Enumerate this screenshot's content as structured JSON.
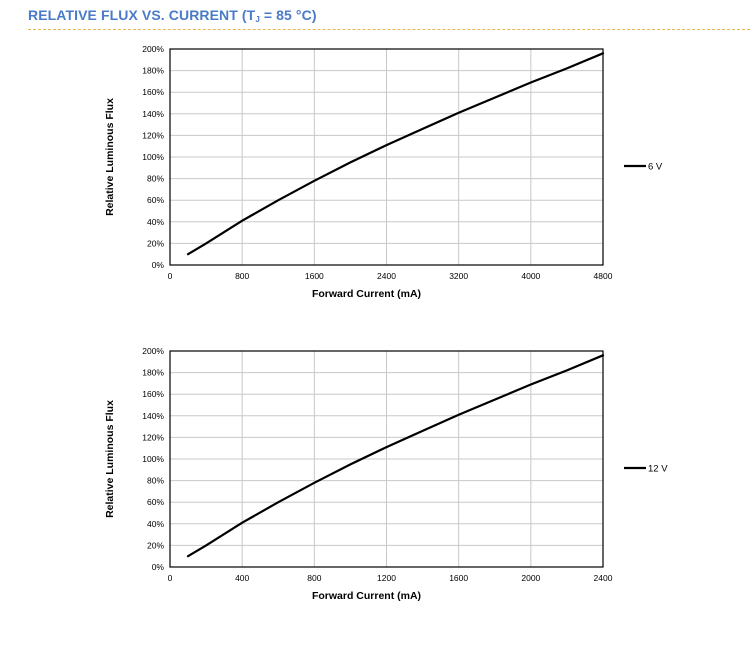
{
  "header": {
    "title_prefix": "RELATIVE FLUX VS. CURRENT (T",
    "title_sub": "J",
    "title_suffix": " = 85 °C)"
  },
  "colors": {
    "title": "#4a7bc8",
    "rule": "#e8b64a",
    "line": "#000000",
    "grid": "#c8c8c8"
  },
  "chart_data": [
    {
      "type": "line",
      "xlabel": "Forward Current (mA)",
      "ylabel": "Relative Luminous Flux",
      "xlim": [
        0,
        4800
      ],
      "ylim": [
        0,
        200
      ],
      "x_ticks": [
        "0",
        "800",
        "1600",
        "2400",
        "3200",
        "4000",
        "4800"
      ],
      "y_ticks": [
        "0%",
        "20%",
        "40%",
        "60%",
        "80%",
        "100%",
        "120%",
        "140%",
        "160%",
        "180%",
        "200%"
      ],
      "grid": true,
      "legend_position": "right",
      "series": [
        {
          "name": "6 V",
          "x": [
            200,
            400,
            800,
            1200,
            1600,
            2000,
            2400,
            2800,
            3200,
            3600,
            4000,
            4400,
            4800
          ],
          "y": [
            10,
            20,
            41,
            60,
            78,
            95,
            111,
            126,
            141,
            155,
            169,
            182,
            196
          ]
        }
      ]
    },
    {
      "type": "line",
      "xlabel": "Forward Current (mA)",
      "ylabel": "Relative Luminous Flux",
      "xlim": [
        0,
        2400
      ],
      "ylim": [
        0,
        200
      ],
      "x_ticks": [
        "0",
        "400",
        "800",
        "1200",
        "1600",
        "2000",
        "2400"
      ],
      "y_ticks": [
        "0%",
        "20%",
        "40%",
        "60%",
        "80%",
        "100%",
        "120%",
        "140%",
        "160%",
        "180%",
        "200%"
      ],
      "grid": true,
      "legend_position": "right",
      "series": [
        {
          "name": "12 V",
          "x": [
            100,
            200,
            400,
            600,
            800,
            1000,
            1200,
            1400,
            1600,
            1800,
            2000,
            2200,
            2400
          ],
          "y": [
            10,
            20,
            41,
            60,
            78,
            95,
            111,
            126,
            141,
            155,
            169,
            182,
            196
          ]
        }
      ]
    }
  ]
}
